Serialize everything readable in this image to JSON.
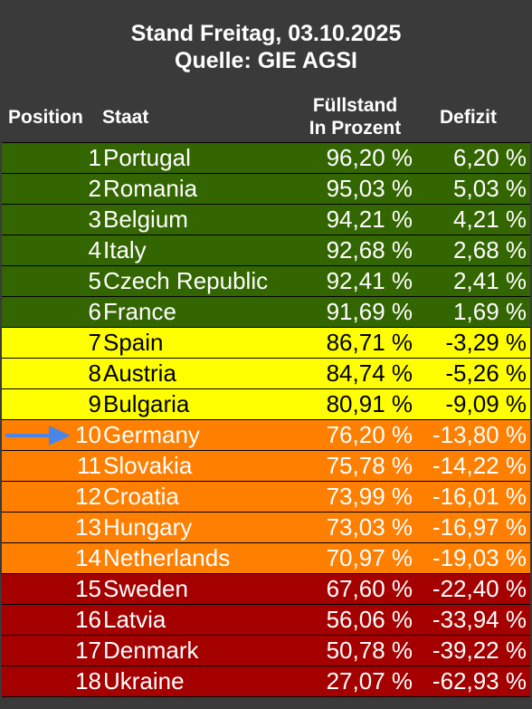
{
  "title": {
    "line1": "Stand Freitag, 03.10.2025",
    "line2": "Quelle: GIE AGSI"
  },
  "headers": {
    "position": "Position",
    "staat": "Staat",
    "fuellstand_line1": "Füllstand",
    "fuellstand_line2": "In Prozent",
    "defizit": "Defizit"
  },
  "colors": {
    "green": "#336600",
    "yellow": "#ffff00",
    "orange": "#ff7f00",
    "red": "#a50000",
    "arrow": "#4a86e8"
  },
  "rows": [
    {
      "position": "1",
      "staat": "Portugal",
      "fuellstand": "96,20 %",
      "defizit": "6,20 %",
      "band": "green"
    },
    {
      "position": "2",
      "staat": "Romania",
      "fuellstand": "95,03 %",
      "defizit": "5,03 %",
      "band": "green"
    },
    {
      "position": "3",
      "staat": "Belgium",
      "fuellstand": "94,21 %",
      "defizit": "4,21 %",
      "band": "green"
    },
    {
      "position": "4",
      "staat": "Italy",
      "fuellstand": "92,68 %",
      "defizit": "2,68 %",
      "band": "green"
    },
    {
      "position": "5",
      "staat": "Czech Republic",
      "fuellstand": "92,41 %",
      "defizit": "2,41 %",
      "band": "green"
    },
    {
      "position": "6",
      "staat": "France",
      "fuellstand": "91,69 %",
      "defizit": "1,69 %",
      "band": "green"
    },
    {
      "position": "7",
      "staat": "Spain",
      "fuellstand": "86,71 %",
      "defizit": "-3,29 %",
      "band": "yellow"
    },
    {
      "position": "8",
      "staat": "Austria",
      "fuellstand": "84,74 %",
      "defizit": "-5,26 %",
      "band": "yellow"
    },
    {
      "position": "9",
      "staat": "Bulgaria",
      "fuellstand": "80,91 %",
      "defizit": "-9,09 %",
      "band": "yellow"
    },
    {
      "position": "10",
      "staat": "Germany",
      "fuellstand": "76,20 %",
      "defizit": "-13,80 %",
      "band": "orange",
      "highlight": true
    },
    {
      "position": "11",
      "staat": "Slovakia",
      "fuellstand": "75,78 %",
      "defizit": "-14,22 %",
      "band": "orange"
    },
    {
      "position": "12",
      "staat": "Croatia",
      "fuellstand": "73,99 %",
      "defizit": "-16,01 %",
      "band": "orange"
    },
    {
      "position": "13",
      "staat": "Hungary",
      "fuellstand": "73,03 %",
      "defizit": "-16,97 %",
      "band": "orange"
    },
    {
      "position": "14",
      "staat": "Netherlands",
      "fuellstand": "70,97 %",
      "defizit": "-19,03 %",
      "band": "orange"
    },
    {
      "position": "15",
      "staat": "Sweden",
      "fuellstand": "67,60 %",
      "defizit": "-22,40 %",
      "band": "red"
    },
    {
      "position": "16",
      "staat": "Latvia",
      "fuellstand": "56,06 %",
      "defizit": "-33,94 %",
      "band": "red"
    },
    {
      "position": "17",
      "staat": "Denmark",
      "fuellstand": "50,78 %",
      "defizit": "-39,22 %",
      "band": "red"
    },
    {
      "position": "18",
      "staat": "Ukraine",
      "fuellstand": "27,07 %",
      "defizit": "-62,93 %",
      "band": "red"
    }
  ]
}
